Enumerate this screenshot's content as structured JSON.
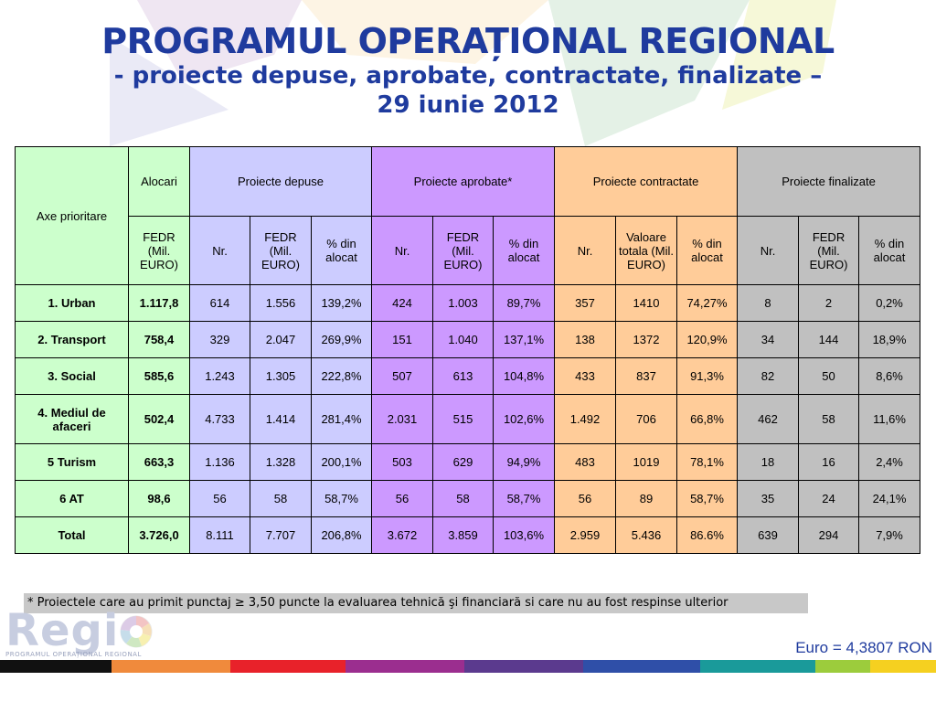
{
  "title": {
    "main": "PROGRAMUL OPERAȚIONAL REGIONAL",
    "sub": "- proiecte depuse, aprobate, contractate, finalizate –",
    "date": "29 iunie 2012"
  },
  "table": {
    "header1": {
      "axe": "Axe prioritare",
      "alocari": "Alocari",
      "depuse": "Proiecte depuse",
      "aprobate": "Proiecte aprobate*",
      "contractate": "Proiecte contractate",
      "finalizate": "Proiecte finalizate"
    },
    "header2": [
      "FEDR (Mil. EURO)",
      "Nr.",
      "FEDR (Mil. EURO)",
      "% din alocat",
      "Nr.",
      "FEDR (Mil. EURO)",
      "% din alocat",
      "Nr.",
      "Valoare totala (Mil. EURO)",
      "% din alocat",
      "Nr.",
      "FEDR (Mil. EURO)",
      "% din alocat"
    ],
    "rows": [
      {
        "axe": "1. Urban",
        "cells": [
          "1.117,8",
          "614",
          "1.556",
          "139,2%",
          "424",
          "1.003",
          "89,7%",
          "357",
          "1410",
          "74,27%",
          "8",
          "2",
          "0,2%"
        ]
      },
      {
        "axe": "2. Transport",
        "cells": [
          "758,4",
          "329",
          "2.047",
          "269,9%",
          "151",
          "1.040",
          "137,1%",
          "138",
          "1372",
          "120,9%",
          "34",
          "144",
          "18,9%"
        ]
      },
      {
        "axe": "3. Social",
        "cells": [
          "585,6",
          "1.243",
          "1.305",
          "222,8%",
          "507",
          "613",
          "104,8%",
          "433",
          "837",
          "91,3%",
          "82",
          "50",
          "8,6%"
        ]
      },
      {
        "axe": "4. Mediul de afaceri",
        "cells": [
          "502,4",
          "4.733",
          "1.414",
          "281,4%",
          "2.031",
          "515",
          "102,6%",
          "1.492",
          "706",
          "66,8%",
          "462",
          "58",
          "11,6%"
        ]
      },
      {
        "axe": "5 Turism",
        "cells": [
          "663,3",
          "1.136",
          "1.328",
          "200,1%",
          "503",
          "629",
          "94,9%",
          "483",
          "1019",
          "78,1%",
          "18",
          "16",
          "2,4%"
        ]
      },
      {
        "axe": "6 AT",
        "cells": [
          "98,6",
          "56",
          "58",
          "58,7%",
          "56",
          "58",
          "58,7%",
          "56",
          "89",
          "58,7%",
          "35",
          "24",
          "24,1%"
        ]
      },
      {
        "axe": "Total",
        "cells": [
          "3.726,0",
          "8.111",
          "7.707",
          "206,8%",
          "3.672",
          "3.859",
          "103,6%",
          "2.959",
          "5.436",
          "86.6%",
          "639",
          "294",
          "7,9%"
        ]
      }
    ]
  },
  "footnote": "* Proiectele care au primit punctaj ≥ 3,50 puncte la evaluarea tehnică şi financiară si care nu au fost respinse ulterior",
  "exchange_rate": "Euro = 4,3807 RON",
  "logo": {
    "text": "Regio",
    "subtitle": "PROGRAMUL OPERAȚIONAL REGIONAL"
  },
  "colors": {
    "title": "#1f3b9e",
    "axe_bg": "#ccffcc",
    "depuse_bg": "#ccccff",
    "aprobate_bg": "#cc99ff",
    "contractate_bg": "#ffcc99",
    "finalizate_bg": "#c0c0c0",
    "footnote_bg": "#c8c8c8",
    "stripe": [
      "#111111",
      "#f08a3c",
      "#e8222a",
      "#9b2e8f",
      "#5b3a8e",
      "#2f4fa8",
      "#1a9a9a",
      "#9ccc3c",
      "#f5d020"
    ]
  }
}
